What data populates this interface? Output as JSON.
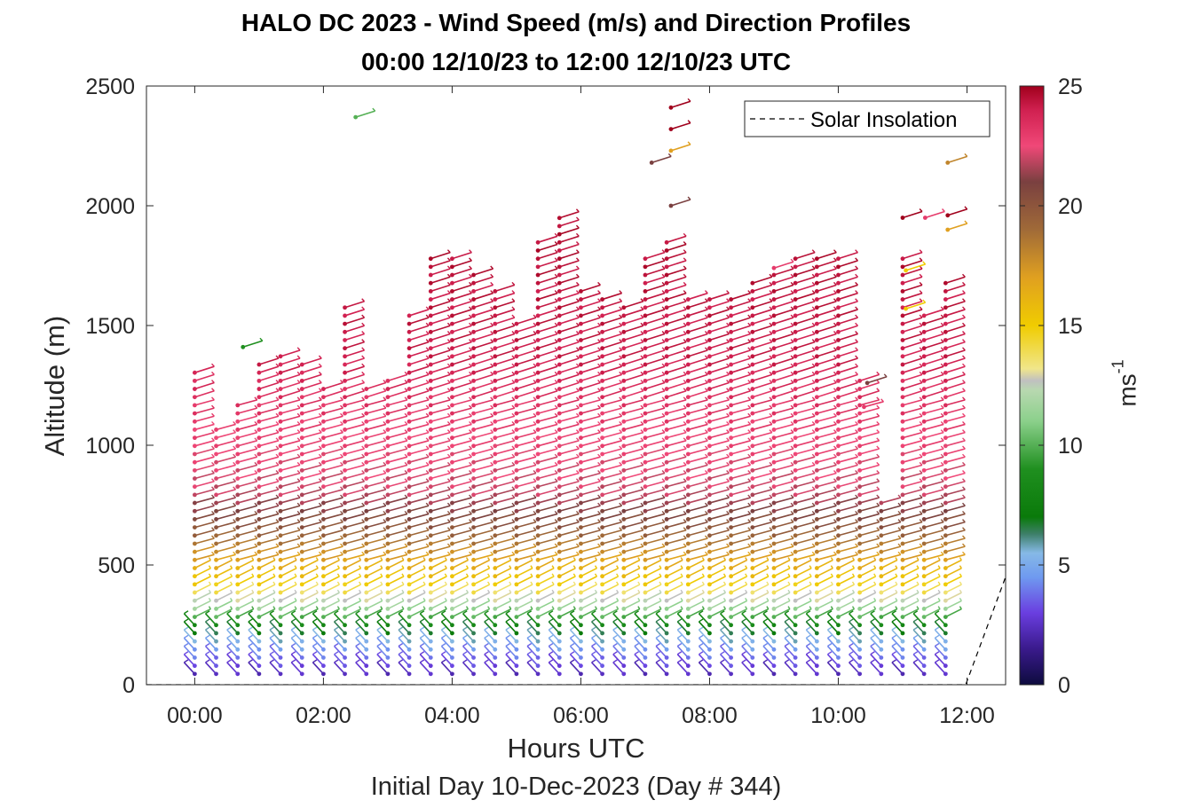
{
  "chart_data": {
    "type": "wind-barb-profile",
    "title": "HALO DC 2023 - Wind Speed (m/s) and Direction Profiles",
    "subtitle": "00:00 12/10/23 to 12:00 12/10/23  UTC",
    "xlabel": "Hours UTC",
    "x_sublabel": "Initial Day 10-Dec-2023 (Day # 344)",
    "ylabel": "Altitude (m)",
    "xlim": [
      -0.75,
      12.6
    ],
    "ylim": [
      0,
      2500
    ],
    "x_ticks": [
      0,
      2,
      4,
      6,
      8,
      10,
      12
    ],
    "x_tick_labels": [
      "00:00",
      "02:00",
      "04:00",
      "06:00",
      "08:00",
      "10:00",
      "12:00"
    ],
    "y_ticks": [
      0,
      500,
      1000,
      1500,
      2000,
      2500
    ],
    "y_tick_labels": [
      "0",
      "500",
      "1000",
      "1500",
      "2000",
      "2500"
    ],
    "colorbar": {
      "label": "ms",
      "label_exponent": "-1",
      "range": [
        0,
        25
      ],
      "ticks": [
        0,
        5,
        10,
        15,
        20,
        25
      ],
      "tick_labels": [
        "0",
        "5",
        "10",
        "15",
        "20",
        "25"
      ],
      "colors": [
        {
          "v": 0,
          "c": "#0d0b3e"
        },
        {
          "v": 1.5,
          "c": "#3a1a8c"
        },
        {
          "v": 3,
          "c": "#6a3ee0"
        },
        {
          "v": 4.5,
          "c": "#6f9af0"
        },
        {
          "v": 5.5,
          "c": "#86b9e6"
        },
        {
          "v": 6.3,
          "c": "#3d7f68"
        },
        {
          "v": 7,
          "c": "#0a7a0a"
        },
        {
          "v": 9,
          "c": "#1f8f1f"
        },
        {
          "v": 11,
          "c": "#8bd08b"
        },
        {
          "v": 12.3,
          "c": "#b8d8b0"
        },
        {
          "v": 12.7,
          "c": "#c0c0c0"
        },
        {
          "v": 13.2,
          "c": "#f0e68a"
        },
        {
          "v": 15,
          "c": "#f0cc00"
        },
        {
          "v": 17,
          "c": "#e0a020"
        },
        {
          "v": 19,
          "c": "#a06a38"
        },
        {
          "v": 21,
          "c": "#7a4040"
        },
        {
          "v": 22.5,
          "c": "#f04878"
        },
        {
          "v": 24,
          "c": "#d02050"
        },
        {
          "v": 25,
          "c": "#a0001c"
        }
      ]
    },
    "legend": {
      "label": "Solar Insolation",
      "location": "top-right",
      "style": "dashed"
    },
    "solar_insolation_line": {
      "x": [
        -0.75,
        11.98,
        12.6
      ],
      "y": [
        0,
        0,
        450
      ]
    },
    "profiles": {
      "times": [
        0,
        0.333,
        0.667,
        1.0,
        1.333,
        1.667,
        2.0,
        2.333,
        2.667,
        3.0,
        3.333,
        3.667,
        4.0,
        4.333,
        4.667,
        5.0,
        5.333,
        5.667,
        6.0,
        6.333,
        6.667,
        7.0,
        7.333,
        7.667,
        8.0,
        8.333,
        8.667,
        9.0,
        9.333,
        9.667,
        10.0,
        10.333,
        10.667,
        11.0,
        11.333,
        11.667
      ],
      "top_altitudes": [
        1320,
        1080,
        1180,
        1360,
        1400,
        1370,
        1250,
        1580,
        1260,
        1290,
        1560,
        1780,
        1780,
        1720,
        1650,
        1540,
        1860,
        1950,
        1670,
        1640,
        1580,
        1780,
        1870,
        1610,
        1620,
        1620,
        1700,
        1730,
        1780,
        1800,
        1800,
        1300,
        760,
        1780,
        1570,
        1680
      ],
      "lowest_altitude": 45,
      "gate_spacing": 34,
      "speed_profile": [
        {
          "z": 0,
          "s": 1.5
        },
        {
          "z": 120,
          "s": 4
        },
        {
          "z": 200,
          "s": 6
        },
        {
          "z": 260,
          "s": 9
        },
        {
          "z": 330,
          "s": 12
        },
        {
          "z": 420,
          "s": 15
        },
        {
          "z": 520,
          "s": 17
        },
        {
          "z": 650,
          "s": 20
        },
        {
          "z": 800,
          "s": 22
        },
        {
          "z": 1100,
          "s": 23
        },
        {
          "z": 1350,
          "s": 24
        },
        {
          "z": 1800,
          "s": 24.5
        },
        {
          "z": 2500,
          "s": 25
        }
      ],
      "isolated_barbs": [
        {
          "t": 0.75,
          "z": 1410,
          "s": 9
        },
        {
          "t": 2.5,
          "z": 2370,
          "s": 10
        },
        {
          "t": 7.4,
          "z": 2410,
          "s": 25
        },
        {
          "t": 7.4,
          "z": 2320,
          "s": 25
        },
        {
          "t": 7.4,
          "z": 2230,
          "s": 17
        },
        {
          "t": 7.1,
          "z": 2180,
          "s": 21
        },
        {
          "t": 7.4,
          "z": 2000,
          "s": 21
        },
        {
          "t": 9.0,
          "z": 1740,
          "s": 23
        },
        {
          "t": 10.4,
          "z": 1160,
          "s": 23
        },
        {
          "t": 10.45,
          "z": 1260,
          "s": 21
        },
        {
          "t": 11.0,
          "z": 1950,
          "s": 25
        },
        {
          "t": 11.35,
          "z": 1950,
          "s": 23
        },
        {
          "t": 11.7,
          "z": 1960,
          "s": 25
        },
        {
          "t": 11.7,
          "z": 2180,
          "s": 18
        },
        {
          "t": 11.7,
          "z": 1900,
          "s": 17
        },
        {
          "t": 11.05,
          "z": 1730,
          "s": 15
        },
        {
          "t": 11.05,
          "z": 1570,
          "s": 15
        }
      ]
    }
  }
}
